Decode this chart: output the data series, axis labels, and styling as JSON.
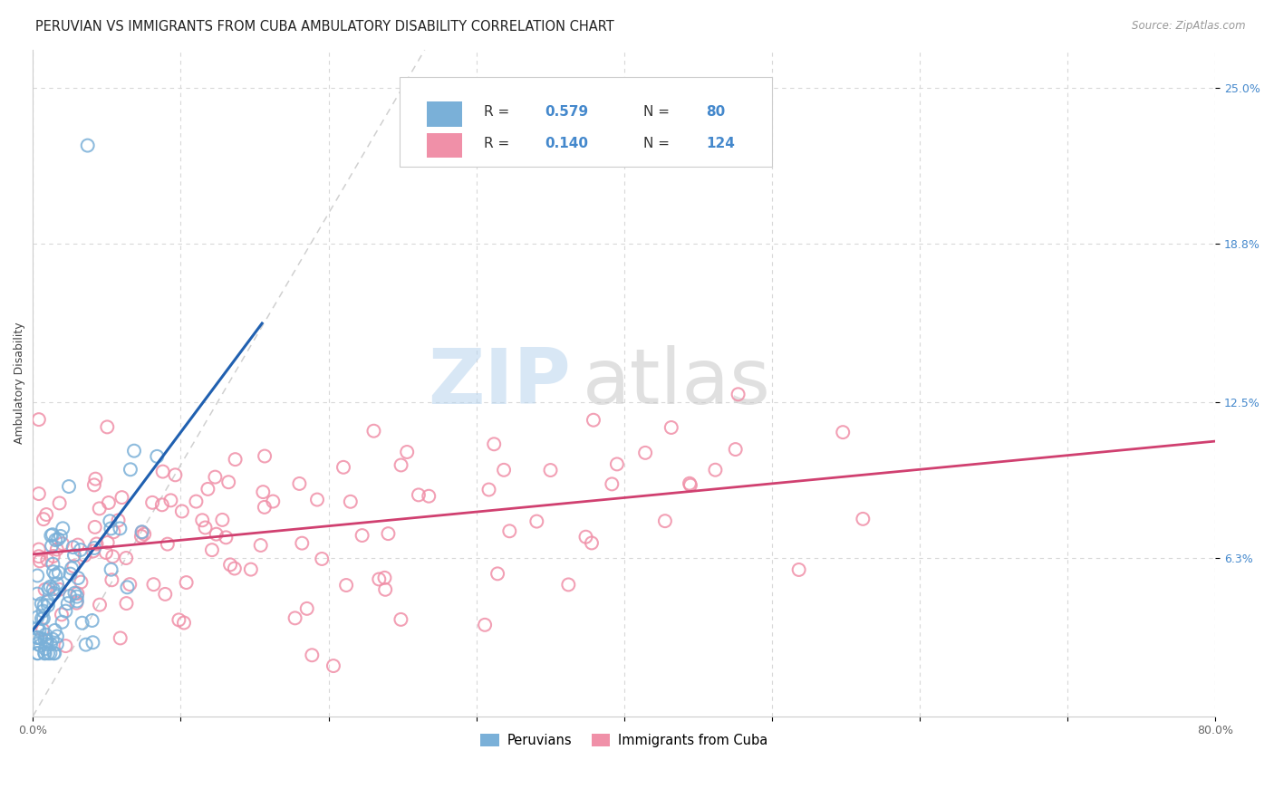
{
  "title": "PERUVIAN VS IMMIGRANTS FROM CUBA AMBULATORY DISABILITY CORRELATION CHART",
  "source": "Source: ZipAtlas.com",
  "ylabel": "Ambulatory Disability",
  "xlim": [
    0.0,
    0.8
  ],
  "ylim": [
    0.0,
    0.265
  ],
  "yticks": [
    0.063,
    0.125,
    0.188,
    0.25
  ],
  "ytick_labels": [
    "6.3%",
    "12.5%",
    "18.8%",
    "25.0%"
  ],
  "xticks": [
    0.0,
    0.1,
    0.2,
    0.3,
    0.4,
    0.5,
    0.6,
    0.7,
    0.8
  ],
  "xtick_labels": [
    "0.0%",
    "",
    "",
    "",
    "",
    "",
    "",
    "",
    "80.0%"
  ],
  "peruvian_color": "#7ab0d8",
  "cuba_color": "#f090a8",
  "peruvian_line_color": "#2060b0",
  "cuba_line_color": "#d04070",
  "diagonal_color": "#c8c8c8",
  "legend_text_color": "#4488cc",
  "R_peruvian": 0.579,
  "N_peruvian": 80,
  "R_cuba": 0.14,
  "N_cuba": 124,
  "watermark_zip": "ZIP",
  "watermark_atlas": "atlas",
  "background_color": "#ffffff",
  "grid_color": "#d8d8d8",
  "title_fontsize": 10.5,
  "axis_label_fontsize": 9,
  "tick_fontsize": 9,
  "legend_label_1": "Peruvians",
  "legend_label_2": "Immigrants from Cuba"
}
